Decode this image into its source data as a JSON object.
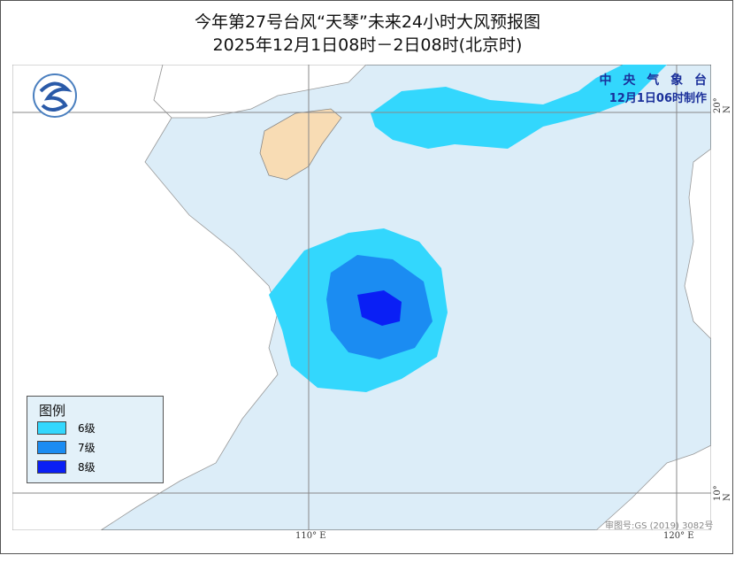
{
  "title": {
    "line1": "今年第27号台风“天琴”未来24小时大风预报图",
    "line2": "2025年12月1日08时－2日08时(北京时)"
  },
  "agency": {
    "name": "中 央 气 象 台",
    "issued": "12月1日06时制作"
  },
  "axes": {
    "lon_110": "110° E",
    "lon_120": "120° E",
    "lat_20": "20° N",
    "lat_10": "10° N"
  },
  "legend": {
    "title": "图例",
    "items": [
      {
        "label": "6级",
        "color": "#33d7fd"
      },
      {
        "label": "7级",
        "color": "#1b8cf2"
      },
      {
        "label": "8级",
        "color": "#0a1ff5"
      }
    ]
  },
  "approval": "审图号:GS (2019) 3082号",
  "colors": {
    "sea": "#dcedf8",
    "land": "#ffffff",
    "hainan": "#f8dcb4"
  }
}
